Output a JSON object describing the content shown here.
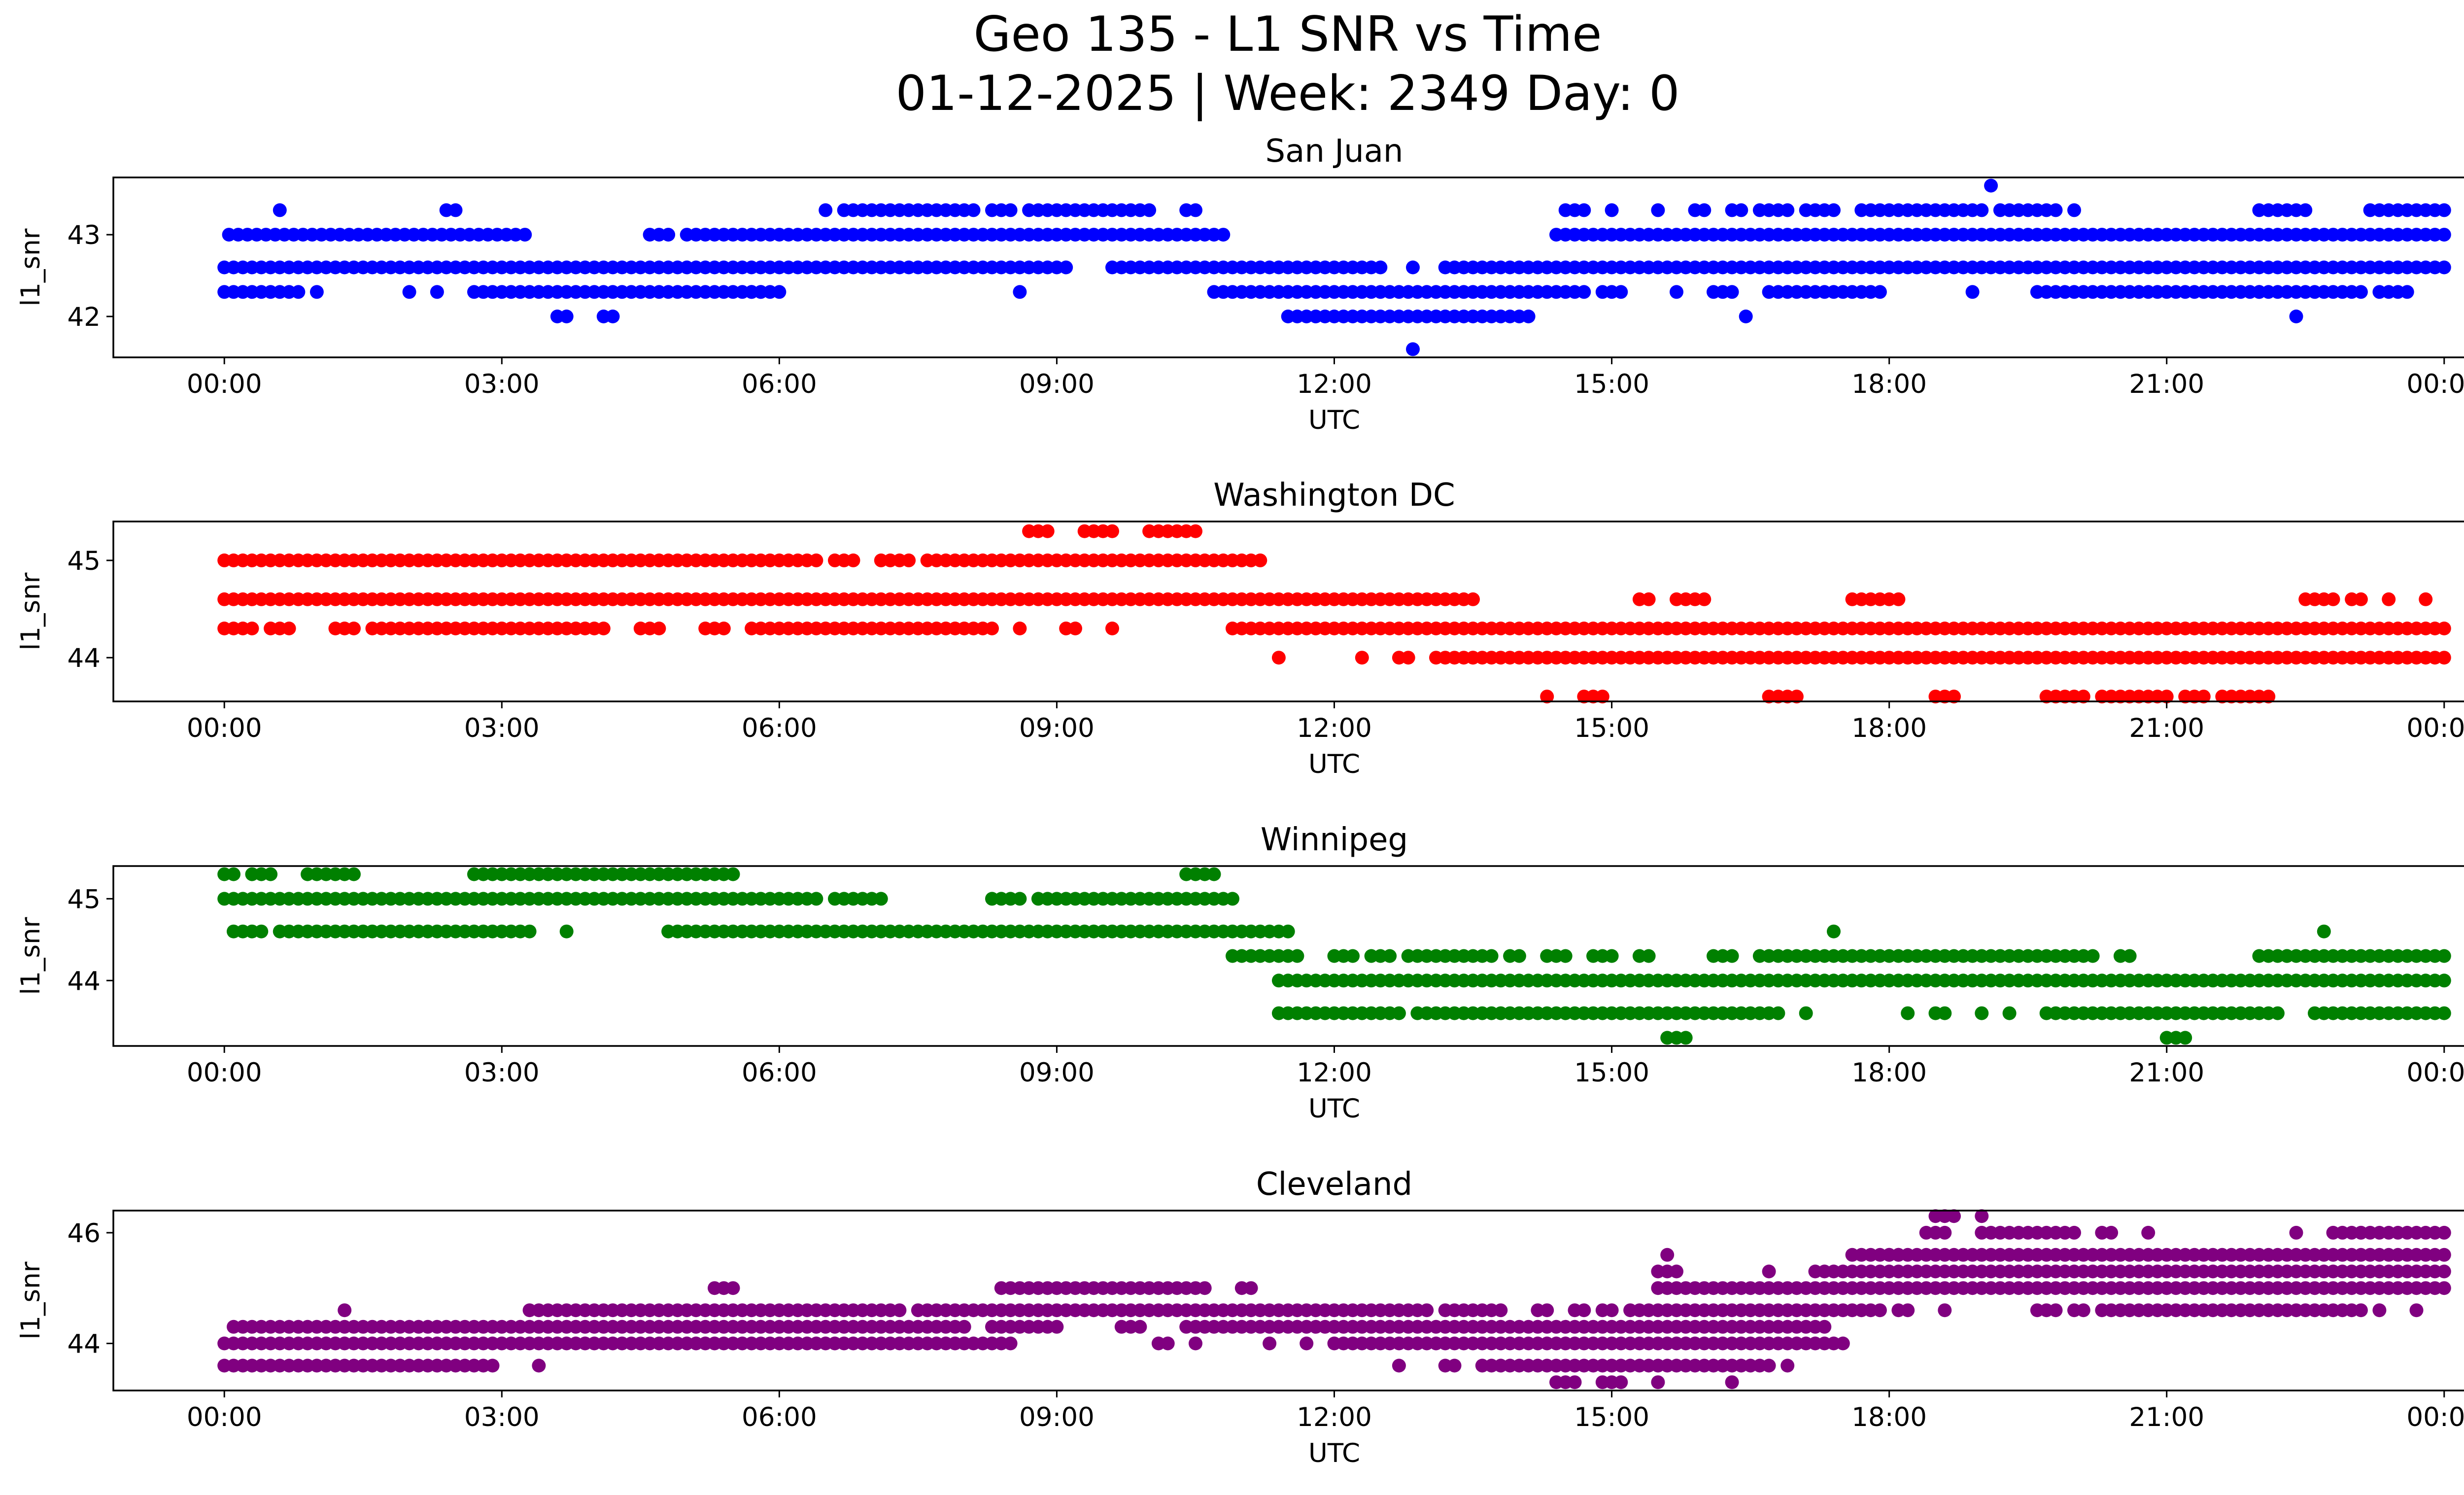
{
  "figure": {
    "title_line1": "Geo 135 - L1 SNR vs Time",
    "title_line2": "01-12-2025 | Week: 2349 Day: 0"
  },
  "chart_data": [
    {
      "type": "scatter",
      "title": "San Juan",
      "xlabel": "UTC",
      "ylabel": "l1_snr",
      "color": "#0000ff",
      "xlim_hours": [
        -1.2,
        25.2
      ],
      "ylim": [
        41.5,
        43.7
      ],
      "x_ticks": [
        "00:00",
        "03:00",
        "06:00",
        "09:00",
        "12:00",
        "15:00",
        "18:00",
        "21:00",
        "00:00"
      ],
      "y_ticks": [
        42,
        43
      ],
      "grid": false,
      "bands": [
        {
          "y": 41.6,
          "ranges": [
            [
              12.85,
              12.85
            ]
          ]
        },
        {
          "y": 42.0,
          "ranges": [
            [
              3.6,
              3.75
            ],
            [
              4.1,
              4.25
            ],
            [
              11.5,
              14.1
            ],
            [
              16.45,
              16.45
            ],
            [
              22.4,
              22.4
            ]
          ]
        },
        {
          "y": 42.3,
          "ranges": [
            [
              0.0,
              0.8
            ],
            [
              1.0,
              1.0
            ],
            [
              2.0,
              2.0
            ],
            [
              2.3,
              2.3
            ],
            [
              2.7,
              5.8
            ],
            [
              5.7,
              6.0
            ],
            [
              8.6,
              8.6
            ],
            [
              10.7,
              14.7
            ],
            [
              14.9,
              15.1
            ],
            [
              15.7,
              15.7
            ],
            [
              16.1,
              16.3
            ],
            [
              16.7,
              16.9
            ],
            [
              17.0,
              17.9
            ],
            [
              18.9,
              18.9
            ],
            [
              19.6,
              22.0
            ],
            [
              22.0,
              23.1
            ],
            [
              23.3,
              23.6
            ]
          ]
        },
        {
          "y": 42.6,
          "ranges": [
            [
              0.0,
              9.0
            ],
            [
              9.1,
              9.1
            ],
            [
              9.6,
              12.5
            ],
            [
              12.85,
              12.85
            ],
            [
              13.2,
              24.0
            ]
          ]
        },
        {
          "y": 43.0,
          "ranges": [
            [
              0.05,
              3.3
            ],
            [
              4.6,
              4.8
            ],
            [
              5.0,
              5.2
            ],
            [
              5.3,
              10.8
            ],
            [
              14.4,
              24.0
            ]
          ]
        },
        {
          "y": 43.3,
          "ranges": [
            [
              0.6,
              0.6
            ],
            [
              2.4,
              2.55
            ],
            [
              6.5,
              6.5
            ],
            [
              6.7,
              8.1
            ],
            [
              8.3,
              8.5
            ],
            [
              8.7,
              9.2
            ],
            [
              9.3,
              10.0
            ],
            [
              10.4,
              10.5
            ],
            [
              14.5,
              14.7
            ],
            [
              15.0,
              15.0
            ],
            [
              15.5,
              15.5
            ],
            [
              15.9,
              16.0
            ],
            [
              16.3,
              16.4
            ],
            [
              16.6,
              16.9
            ],
            [
              17.1,
              17.4
            ],
            [
              17.7,
              19.0
            ],
            [
              19.2,
              19.8
            ],
            [
              20.0,
              20.0
            ],
            [
              22.0,
              22.3
            ],
            [
              22.4,
              22.5
            ],
            [
              23.2,
              24.0
            ]
          ]
        },
        {
          "y": 43.6,
          "ranges": [
            [
              19.1,
              19.1
            ]
          ]
        }
      ]
    },
    {
      "type": "scatter",
      "title": "Washington DC",
      "xlabel": "UTC",
      "ylabel": "l1_snr",
      "color": "#ff0000",
      "xlim_hours": [
        -1.2,
        25.2
      ],
      "ylim": [
        43.55,
        45.4
      ],
      "x_ticks": [
        "00:00",
        "03:00",
        "06:00",
        "09:00",
        "12:00",
        "15:00",
        "18:00",
        "21:00",
        "00:00"
      ],
      "y_ticks": [
        44,
        45
      ],
      "grid": false,
      "bands": [
        {
          "y": 43.6,
          "ranges": [
            [
              14.3,
              14.3
            ],
            [
              14.7,
              14.9
            ],
            [
              16.7,
              17.0
            ],
            [
              18.5,
              18.7
            ],
            [
              19.7,
              20.1
            ],
            [
              20.3,
              21.0
            ],
            [
              21.2,
              21.4
            ],
            [
              21.6,
              22.1
            ]
          ]
        },
        {
          "y": 44.0,
          "ranges": [
            [
              11.4,
              11.4
            ],
            [
              12.3,
              12.3
            ],
            [
              12.7,
              12.8
            ],
            [
              13.1,
              13.5
            ],
            [
              13.5,
              24.0
            ]
          ]
        },
        {
          "y": 44.3,
          "ranges": [
            [
              0.0,
              0.3
            ],
            [
              0.5,
              0.7
            ],
            [
              1.2,
              1.4
            ],
            [
              1.6,
              3.3
            ],
            [
              3.4,
              4.1
            ],
            [
              4.5,
              4.7
            ],
            [
              5.2,
              5.4
            ],
            [
              5.7,
              5.9
            ],
            [
              6.0,
              8.3
            ],
            [
              8.6,
              8.6
            ],
            [
              9.1,
              9.2
            ],
            [
              9.6,
              9.6
            ],
            [
              10.9,
              24.0
            ]
          ]
        },
        {
          "y": 44.6,
          "ranges": [
            [
              0.0,
              13.5
            ],
            [
              15.3,
              15.4
            ],
            [
              15.7,
              16.0
            ],
            [
              17.6,
              18.1
            ],
            [
              22.5,
              22.8
            ],
            [
              23.0,
              23.1
            ],
            [
              23.4,
              23.4
            ],
            [
              23.8,
              23.8
            ]
          ]
        },
        {
          "y": 45.0,
          "ranges": [
            [
              0.0,
              0.2
            ],
            [
              0.3,
              4.6
            ],
            [
              4.7,
              6.4
            ],
            [
              6.6,
              6.8
            ],
            [
              7.1,
              7.4
            ],
            [
              7.6,
              11.2
            ]
          ]
        },
        {
          "y": 45.3,
          "ranges": [
            [
              8.7,
              8.9
            ],
            [
              9.3,
              9.6
            ],
            [
              10.0,
              10.2
            ],
            [
              10.3,
              10.5
            ]
          ]
        }
      ]
    },
    {
      "type": "scatter",
      "title": "Winnipeg",
      "xlabel": "UTC",
      "ylabel": "l1_snr",
      "color": "#008000",
      "xlim_hours": [
        -1.2,
        25.2
      ],
      "ylim": [
        43.2,
        45.4
      ],
      "x_ticks": [
        "00:00",
        "03:00",
        "06:00",
        "09:00",
        "12:00",
        "15:00",
        "18:00",
        "21:00",
        "00:00"
      ],
      "y_ticks": [
        44,
        45
      ],
      "grid": false,
      "bands": [
        {
          "y": 43.3,
          "ranges": [
            [
              15.6,
              15.8
            ],
            [
              21.0,
              21.2
            ]
          ]
        },
        {
          "y": 43.6,
          "ranges": [
            [
              11.4,
              12.7
            ],
            [
              12.9,
              16.8
            ],
            [
              17.1,
              17.1
            ],
            [
              18.2,
              18.2
            ],
            [
              18.5,
              18.6
            ],
            [
              19.0,
              19.0
            ],
            [
              19.3,
              19.3
            ],
            [
              19.7,
              20.1
            ],
            [
              20.2,
              22.0
            ],
            [
              22.1,
              22.2
            ],
            [
              22.6,
              22.7
            ],
            [
              22.8,
              24.0
            ]
          ]
        },
        {
          "y": 44.0,
          "ranges": [
            [
              11.4,
              24.0
            ]
          ]
        },
        {
          "y": 44.3,
          "ranges": [
            [
              10.9,
              11.6
            ],
            [
              12.0,
              12.2
            ],
            [
              12.4,
              12.6
            ],
            [
              12.8,
              13.7
            ],
            [
              13.9,
              14.0
            ],
            [
              14.3,
              14.5
            ],
            [
              14.8,
              15.0
            ],
            [
              15.3,
              15.4
            ],
            [
              16.1,
              16.3
            ],
            [
              16.6,
              16.7
            ],
            [
              16.8,
              20.2
            ],
            [
              20.5,
              20.6
            ],
            [
              22.0,
              22.3
            ],
            [
              22.3,
              24.0
            ]
          ]
        },
        {
          "y": 44.6,
          "ranges": [
            [
              0.1,
              0.4
            ],
            [
              0.6,
              2.8
            ],
            [
              2.9,
              3.3
            ],
            [
              3.7,
              3.7
            ],
            [
              4.8,
              4.9
            ],
            [
              5.0,
              11.5
            ],
            [
              17.4,
              17.4
            ],
            [
              22.7,
              22.7
            ]
          ]
        },
        {
          "y": 45.0,
          "ranges": [
            [
              0.0,
              6.4
            ],
            [
              6.6,
              6.8
            ],
            [
              6.9,
              7.1
            ],
            [
              8.3,
              8.6
            ],
            [
              8.8,
              10.9
            ]
          ]
        },
        {
          "y": 45.3,
          "ranges": [
            [
              0.0,
              0.1
            ],
            [
              0.3,
              0.5
            ],
            [
              0.9,
              1.4
            ],
            [
              2.7,
              5.5
            ],
            [
              10.4,
              10.7
            ]
          ]
        }
      ]
    },
    {
      "type": "scatter",
      "title": "Cleveland",
      "xlabel": "UTC",
      "ylabel": "l1_snr",
      "color": "#800080",
      "xlim_hours": [
        -1.2,
        25.2
      ],
      "ylim": [
        43.15,
        46.4
      ],
      "x_ticks": [
        "00:00",
        "03:00",
        "06:00",
        "09:00",
        "12:00",
        "15:00",
        "18:00",
        "21:00",
        "00:00"
      ],
      "y_ticks": [
        44,
        46
      ],
      "grid": false,
      "bands": [
        {
          "y": 43.3,
          "ranges": [
            [
              14.4,
              14.6
            ],
            [
              14.9,
              15.1
            ],
            [
              15.5,
              15.5
            ],
            [
              16.3,
              16.3
            ]
          ]
        },
        {
          "y": 43.6,
          "ranges": [
            [
              0.0,
              2.9
            ],
            [
              3.4,
              3.4
            ],
            [
              12.7,
              12.7
            ],
            [
              13.2,
              13.3
            ],
            [
              13.6,
              16.1
            ],
            [
              16.2,
              16.7
            ],
            [
              16.9,
              16.9
            ]
          ]
        },
        {
          "y": 44.0,
          "ranges": [
            [
              0.0,
              8.5
            ],
            [
              10.1,
              10.2
            ],
            [
              10.5,
              10.5
            ],
            [
              11.3,
              11.3
            ],
            [
              11.7,
              11.7
            ],
            [
              12.0,
              17.5
            ]
          ]
        },
        {
          "y": 44.3,
          "ranges": [
            [
              0.1,
              8.0
            ],
            [
              8.3,
              9.0
            ],
            [
              9.7,
              9.9
            ],
            [
              10.4,
              17.3
            ]
          ]
        },
        {
          "y": 44.6,
          "ranges": [
            [
              1.3,
              1.3
            ],
            [
              3.3,
              7.3
            ],
            [
              7.5,
              7.7
            ],
            [
              7.8,
              13.0
            ],
            [
              13.2,
              13.8
            ],
            [
              14.2,
              14.3
            ],
            [
              14.6,
              14.7
            ],
            [
              14.9,
              15.0
            ],
            [
              15.2,
              15.6
            ],
            [
              15.7,
              17.4
            ],
            [
              17.5,
              17.9
            ],
            [
              18.1,
              18.2
            ],
            [
              18.6,
              18.6
            ],
            [
              19.6,
              19.8
            ],
            [
              20.0,
              20.1
            ],
            [
              20.3,
              21.9
            ],
            [
              22.0,
              23.1
            ],
            [
              23.3,
              23.3
            ],
            [
              23.7,
              23.7
            ]
          ]
        },
        {
          "y": 45.0,
          "ranges": [
            [
              5.3,
              5.5
            ],
            [
              8.4,
              10.6
            ],
            [
              11.0,
              11.1
            ],
            [
              15.5,
              24.0
            ]
          ]
        },
        {
          "y": 45.3,
          "ranges": [
            [
              15.5,
              15.7
            ],
            [
              16.7,
              16.7
            ],
            [
              17.2,
              24.0
            ]
          ]
        },
        {
          "y": 45.6,
          "ranges": [
            [
              15.6,
              15.6
            ],
            [
              17.6,
              18.1
            ],
            [
              18.0,
              24.0
            ]
          ]
        },
        {
          "y": 46.0,
          "ranges": [
            [
              18.4,
              18.6
            ],
            [
              19.0,
              20.0
            ],
            [
              20.3,
              20.4
            ],
            [
              20.8,
              20.8
            ],
            [
              22.4,
              22.4
            ],
            [
              22.8,
              23.1
            ],
            [
              23.1,
              24.0
            ]
          ]
        },
        {
          "y": 46.3,
          "ranges": [
            [
              18.5,
              18.7
            ],
            [
              19.0,
              19.0
            ]
          ]
        }
      ]
    }
  ]
}
